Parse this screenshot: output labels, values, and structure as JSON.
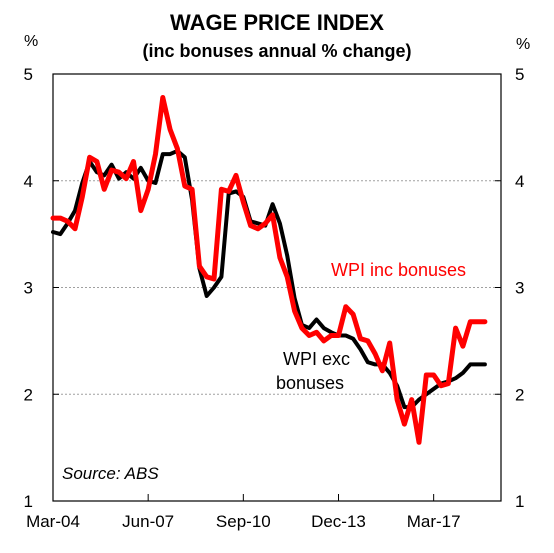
{
  "chart_data": {
    "type": "line",
    "title": "WAGE PRICE INDEX",
    "subtitle": "(inc bonuses annual % change)",
    "y_unit_left": "%",
    "y_unit_right": "%",
    "ylim": [
      1,
      5
    ],
    "y_ticks": [
      "1",
      "2",
      "3",
      "4",
      "5"
    ],
    "x_tick_labels": [
      "Mar-04",
      "Jun-07",
      "Sep-10",
      "Dec-13",
      "Mar-17"
    ],
    "x_ticks": [
      2004.0,
      2007.25,
      2010.5,
      2013.75,
      2017.0
    ],
    "xlim": [
      2004.0,
      2019.3
    ],
    "grid": true,
    "source": "Source: ABS",
    "series": [
      {
        "name": "WPI inc bonuses",
        "color": "#ff0000",
        "x": [
          2004.0,
          2004.25,
          2004.5,
          2004.75,
          2005.0,
          2005.25,
          2005.5,
          2005.75,
          2006.0,
          2006.25,
          2006.5,
          2006.75,
          2007.0,
          2007.25,
          2007.5,
          2007.75,
          2008.0,
          2008.25,
          2008.5,
          2008.75,
          2009.0,
          2009.25,
          2009.5,
          2009.75,
          2010.0,
          2010.25,
          2010.5,
          2010.75,
          2011.0,
          2011.25,
          2011.5,
          2011.75,
          2012.0,
          2012.25,
          2012.5,
          2012.75,
          2013.0,
          2013.25,
          2013.5,
          2013.75,
          2014.0,
          2014.25,
          2014.5,
          2014.75,
          2015.0,
          2015.25,
          2015.5,
          2015.75,
          2016.0,
          2016.25,
          2016.5,
          2016.75,
          2017.0,
          2017.25,
          2017.5,
          2017.75,
          2018.0,
          2018.25,
          2018.5,
          2018.75
        ],
        "values": [
          3.65,
          3.65,
          3.62,
          3.55,
          3.85,
          4.22,
          4.18,
          3.92,
          4.1,
          4.08,
          4.02,
          4.18,
          3.72,
          3.92,
          4.25,
          4.78,
          4.48,
          4.3,
          3.95,
          3.92,
          3.2,
          3.1,
          3.08,
          3.92,
          3.9,
          4.05,
          3.8,
          3.58,
          3.55,
          3.6,
          3.68,
          3.28,
          3.1,
          2.78,
          2.62,
          2.55,
          2.58,
          2.5,
          2.55,
          2.55,
          2.82,
          2.75,
          2.52,
          2.5,
          2.38,
          2.22,
          2.48,
          1.95,
          1.72,
          1.95,
          1.55,
          2.18,
          2.18,
          2.08,
          2.1,
          2.62,
          2.45,
          2.68,
          2.68,
          2.68
        ]
      },
      {
        "name": "WPI exc bonuses",
        "color": "#000000",
        "x": [
          2004.0,
          2004.25,
          2004.5,
          2004.75,
          2005.0,
          2005.25,
          2005.5,
          2005.75,
          2006.0,
          2006.25,
          2006.5,
          2006.75,
          2007.0,
          2007.25,
          2007.5,
          2007.75,
          2008.0,
          2008.25,
          2008.5,
          2008.75,
          2009.0,
          2009.25,
          2009.5,
          2009.75,
          2010.0,
          2010.25,
          2010.5,
          2010.75,
          2011.0,
          2011.25,
          2011.5,
          2011.75,
          2012.0,
          2012.25,
          2012.5,
          2012.75,
          2013.0,
          2013.25,
          2013.5,
          2013.75,
          2014.0,
          2014.25,
          2014.5,
          2014.75,
          2015.0,
          2015.25,
          2015.5,
          2015.75,
          2016.0,
          2016.25,
          2016.5,
          2016.75,
          2017.0,
          2017.25,
          2017.5,
          2017.75,
          2018.0,
          2018.25,
          2018.5,
          2018.75
        ],
        "values": [
          3.52,
          3.5,
          3.6,
          3.72,
          3.98,
          4.18,
          4.08,
          4.05,
          4.15,
          4.02,
          4.08,
          4.02,
          4.12,
          4.0,
          3.98,
          4.25,
          4.25,
          4.28,
          4.22,
          3.82,
          3.18,
          2.92,
          3.0,
          3.1,
          3.88,
          3.9,
          3.85,
          3.62,
          3.6,
          3.58,
          3.78,
          3.6,
          3.3,
          2.9,
          2.65,
          2.62,
          2.7,
          2.62,
          2.58,
          2.55,
          2.55,
          2.52,
          2.42,
          2.3,
          2.28,
          2.28,
          2.2,
          2.08,
          1.88,
          1.88,
          1.95,
          2.0,
          2.05,
          2.1,
          2.12,
          2.15,
          2.2,
          2.28,
          2.28,
          2.28
        ]
      }
    ],
    "annotations": {
      "inc_label": "WPI inc bonuses",
      "exc_label_line1": "WPI exc",
      "exc_label_line2": "bonuses"
    }
  }
}
